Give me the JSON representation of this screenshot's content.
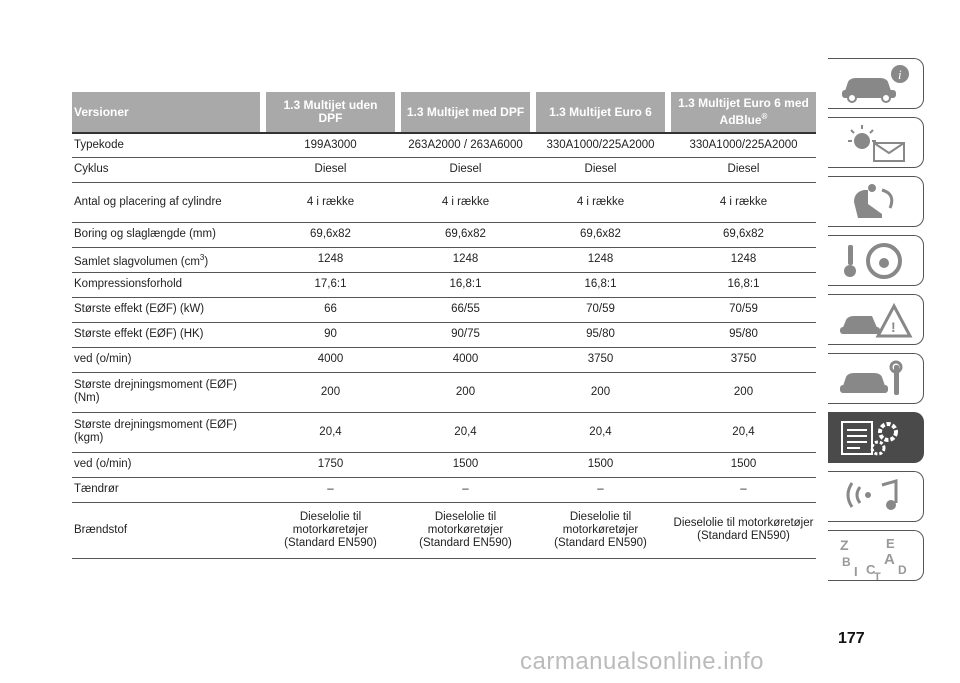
{
  "table": {
    "headers": [
      "Versioner",
      "1.3 Multijet uden DPF",
      "1.3 Multijet med DPF",
      "1.3 Multijet Euro 6",
      "1.3 Multijet Euro 6 med AdBlue"
    ],
    "header_sup": "®",
    "rows": [
      {
        "label": "Typekode",
        "values": [
          "199A3000",
          "263A2000 / 263A6000",
          "330A1000/225A2000",
          "330A1000/225A2000"
        ]
      },
      {
        "label": "Cyklus",
        "values": [
          "Diesel",
          "Diesel",
          "Diesel",
          "Diesel"
        ]
      },
      {
        "label": "Antal og placering af cylindre",
        "values": [
          "4 i række",
          "4 i række",
          "4 i række",
          "4 i række"
        ]
      },
      {
        "label": "Boring og slaglængde (mm)",
        "values": [
          "69,6x82",
          "69,6x82",
          "69,6x82",
          "69,6x82"
        ]
      },
      {
        "label": "Samlet slagvolumen (cm",
        "label_sup": "3",
        "label_suffix": ")",
        "values": [
          "1248",
          "1248",
          "1248",
          "1248"
        ]
      },
      {
        "label": "Kompressionsforhold",
        "values": [
          "17,6:1",
          "16,8:1",
          "16,8:1",
          "16,8:1"
        ]
      },
      {
        "label": "Største effekt (EØF) (kW)",
        "values": [
          "66",
          "66/55",
          "70/59",
          "70/59"
        ]
      },
      {
        "label": "Største effekt (EØF) (HK)",
        "values": [
          "90",
          "90/75",
          "95/80",
          "95/80"
        ]
      },
      {
        "label": "ved (o/min)",
        "values": [
          "4000",
          "4000",
          "3750",
          "3750"
        ]
      },
      {
        "label": "Største drejningsmoment (EØF) (Nm)",
        "values": [
          "200",
          "200",
          "200",
          "200"
        ]
      },
      {
        "label": "Største drejningsmoment (EØF) (kgm)",
        "values": [
          "20,4",
          "20,4",
          "20,4",
          "20,4"
        ]
      },
      {
        "label": "ved (o/min)",
        "values": [
          "1750",
          "1500",
          "1500",
          "1500"
        ]
      },
      {
        "label": "Tændrør",
        "values": [
          "–",
          "–",
          "–",
          "–"
        ]
      },
      {
        "label": "Brændstof",
        "values": [
          "Dieselolie til motorkøretøjer (Standard EN590)",
          "Dieselolie til motorkøretøjer (Standard EN590)",
          "Dieselolie til motorkøretøjer (Standard EN590)",
          "Dieselolie til motorkøretøjer (Standard EN590)"
        ]
      }
    ]
  },
  "side_tabs": [
    {
      "icon": "car-info-icon",
      "active": false
    },
    {
      "icon": "warning-lights-message-icon",
      "active": false
    },
    {
      "icon": "seat-airbag-icon",
      "active": false
    },
    {
      "icon": "key-steering-wheel-icon",
      "active": false
    },
    {
      "icon": "car-accident-icon",
      "active": false
    },
    {
      "icon": "car-tools-icon",
      "active": false
    },
    {
      "icon": "technical-data-gear-icon",
      "active": true
    },
    {
      "icon": "signal-music-icon",
      "active": false
    },
    {
      "icon": "alphabetical-index-icon",
      "active": false
    }
  ],
  "page_number": "177",
  "index_letters": [
    "Z",
    "E",
    "B",
    "A",
    "I",
    "C",
    "D",
    "T"
  ],
  "watermark": "carmanualsonline.info",
  "colors": {
    "header_bg": "#a9a9a9",
    "active_tab": "#4a4a4a"
  }
}
